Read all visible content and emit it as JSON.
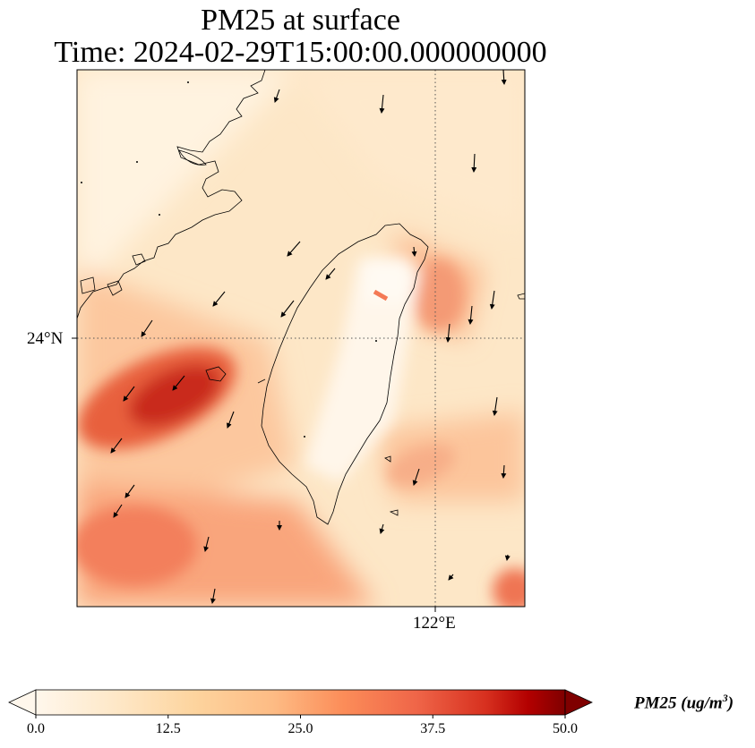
{
  "title": {
    "line1": "PM25 at surface",
    "line2": "Time: 2024-02-29T15:00:00.000000000"
  },
  "map": {
    "lat_tick_label": "24°N",
    "lon_tick_label": "122°E",
    "colormap": "OrRd",
    "vmin": 0,
    "vmax": 50,
    "gridlines": "dotted",
    "coastlines": true,
    "wind_vectors": true,
    "features": [
      "Taiwan",
      "China coast",
      "Penghu islands"
    ]
  },
  "colorbar": {
    "ticks": [
      "0.0",
      "12.5",
      "25.0",
      "37.5",
      "50.0"
    ],
    "label_main": "PM25 (ug/m",
    "label_sup": "3",
    "label_end": ")",
    "extend": "both"
  },
  "colors": {
    "low": "#fff7ec",
    "mid": "#fdbb84",
    "high": "#d7301f",
    "max": "#7f0000"
  }
}
